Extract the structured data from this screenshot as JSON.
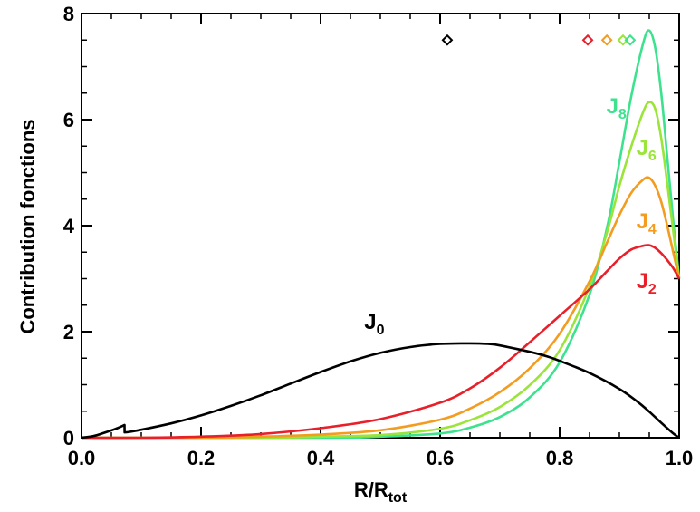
{
  "chart_data": {
    "type": "line",
    "xlabel": {
      "main": "R/R",
      "sub": "tot"
    },
    "ylabel": "Contribution fonctions",
    "xlim": [
      0.0,
      1.0
    ],
    "ylim": [
      0,
      8
    ],
    "x_ticks": [
      {
        "value": 0.0,
        "label": "0.0"
      },
      {
        "value": 0.2,
        "label": "0.2"
      },
      {
        "value": 0.4,
        "label": "0.4"
      },
      {
        "value": 0.6,
        "label": "0.6"
      },
      {
        "value": 0.8,
        "label": "0.8"
      },
      {
        "value": 1.0,
        "label": "1.0"
      }
    ],
    "y_ticks": [
      {
        "value": 0,
        "label": "0"
      },
      {
        "value": 2,
        "label": "2"
      },
      {
        "value": 4,
        "label": "4"
      },
      {
        "value": 6,
        "label": "6"
      },
      {
        "value": 8,
        "label": "8"
      }
    ],
    "grid": false,
    "series": [
      {
        "name": "J0",
        "label_main": "J",
        "label_sub": "0",
        "color": "#000000",
        "label_at": [
          0.49,
          2.05
        ],
        "marker_x": 0.612,
        "x": [
          0.0,
          0.02,
          0.04,
          0.06,
          0.072,
          0.0721,
          0.08,
          0.1,
          0.15,
          0.2,
          0.25,
          0.3,
          0.35,
          0.4,
          0.45,
          0.5,
          0.55,
          0.6,
          0.65,
          0.68,
          0.7,
          0.75,
          0.78,
          0.8,
          0.85,
          0.9,
          0.93,
          0.95,
          0.97,
          0.99,
          1.0
        ],
        "y": [
          0.0,
          0.03,
          0.1,
          0.18,
          0.24,
          0.1,
          0.11,
          0.15,
          0.27,
          0.42,
          0.6,
          0.8,
          1.02,
          1.24,
          1.44,
          1.6,
          1.71,
          1.77,
          1.78,
          1.77,
          1.74,
          1.62,
          1.53,
          1.45,
          1.22,
          0.92,
          0.68,
          0.49,
          0.28,
          0.08,
          0.0
        ]
      },
      {
        "name": "J2",
        "label_main": "J",
        "label_sub": "2",
        "color": "#e8202a",
        "label_at": [
          0.945,
          2.82
        ],
        "marker_x": 0.847,
        "x": [
          0.0,
          0.1,
          0.2,
          0.3,
          0.4,
          0.5,
          0.6,
          0.65,
          0.7,
          0.75,
          0.8,
          0.85,
          0.88,
          0.9,
          0.92,
          0.94,
          0.95,
          0.96,
          0.97,
          0.98,
          0.99,
          1.0
        ],
        "y": [
          0.0,
          0.0,
          0.02,
          0.07,
          0.18,
          0.35,
          0.66,
          0.93,
          1.32,
          1.8,
          2.3,
          2.8,
          3.15,
          3.38,
          3.55,
          3.62,
          3.63,
          3.58,
          3.48,
          3.35,
          3.2,
          3.0
        ]
      },
      {
        "name": "J4",
        "label_main": "J",
        "label_sub": "4",
        "color": "#f39c20",
        "label_at": [
          0.945,
          3.95
        ],
        "marker_x": 0.879,
        "x": [
          0.0,
          0.2,
          0.3,
          0.4,
          0.5,
          0.6,
          0.65,
          0.7,
          0.75,
          0.8,
          0.85,
          0.88,
          0.9,
          0.92,
          0.94,
          0.95,
          0.96,
          0.97,
          0.98,
          0.99,
          1.0
        ],
        "y": [
          0.0,
          0.0,
          0.02,
          0.06,
          0.14,
          0.34,
          0.55,
          0.86,
          1.31,
          1.96,
          2.95,
          3.7,
          4.2,
          4.62,
          4.87,
          4.9,
          4.75,
          4.45,
          4.0,
          3.5,
          3.0
        ]
      },
      {
        "name": "J6",
        "label_main": "J",
        "label_sub": "6",
        "color": "#9be43a",
        "label_at": [
          0.945,
          5.33
        ],
        "marker_x": 0.906,
        "x": [
          0.0,
          0.3,
          0.4,
          0.5,
          0.6,
          0.65,
          0.7,
          0.75,
          0.8,
          0.85,
          0.88,
          0.9,
          0.92,
          0.94,
          0.95,
          0.96,
          0.97,
          0.98,
          0.99,
          1.0
        ],
        "y": [
          0.0,
          0.0,
          0.02,
          0.05,
          0.17,
          0.33,
          0.58,
          0.99,
          1.65,
          2.85,
          3.9,
          4.75,
          5.5,
          6.15,
          6.33,
          6.2,
          5.65,
          4.8,
          3.9,
          3.0
        ]
      },
      {
        "name": "J8",
        "label_main": "J",
        "label_sub": "8",
        "color": "#3de28e",
        "label_at": [
          0.895,
          6.12
        ],
        "marker_x": 0.918,
        "x": [
          0.0,
          0.4,
          0.5,
          0.6,
          0.65,
          0.7,
          0.75,
          0.8,
          0.85,
          0.88,
          0.9,
          0.92,
          0.94,
          0.95,
          0.96,
          0.97,
          0.98,
          0.99,
          1.0
        ],
        "y": [
          0.0,
          0.0,
          0.02,
          0.08,
          0.19,
          0.39,
          0.76,
          1.42,
          2.7,
          4.0,
          5.2,
          6.45,
          7.45,
          7.68,
          7.35,
          6.5,
          5.3,
          4.1,
          3.0
        ]
      }
    ],
    "marker_y": 7.5,
    "marker_shape": "open-diamond"
  }
}
